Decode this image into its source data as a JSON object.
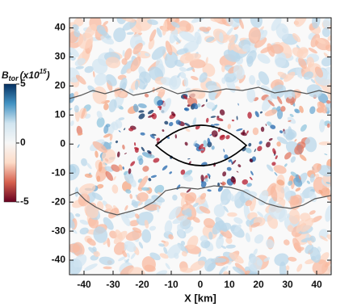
{
  "chart_data": {
    "type": "heatmap",
    "x_label": "X [km]",
    "xlim": [
      -45,
      45
    ],
    "xticks": [
      -40,
      -30,
      -20,
      -10,
      0,
      10,
      20,
      30,
      40
    ],
    "ylim": [
      -45,
      43.5
    ],
    "yticks": [
      -40,
      -30,
      -20,
      -10,
      0,
      10,
      20,
      30,
      40
    ],
    "colorbar": {
      "label": {
        "base": "B",
        "sub": "tor",
        "text": "(x10",
        "sup": "15",
        "end": ")"
      },
      "lim": [
        -5,
        5
      ],
      "ticks": [
        -5,
        0,
        5
      ],
      "colors": [
        "#67001f",
        "#d6604d",
        "#fddbc7",
        "#f7f7f7",
        "#d1e5f0",
        "#4393c3",
        "#053061"
      ]
    }
  }
}
